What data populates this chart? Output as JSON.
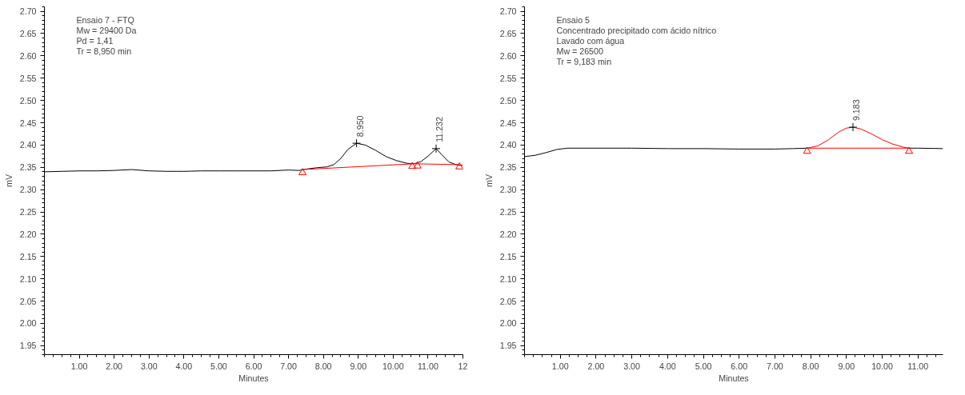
{
  "chart_data": [
    {
      "type": "line",
      "xlabel": "Minutes",
      "ylabel": "mV",
      "xlim": [
        0,
        12
      ],
      "ylim": [
        1.93,
        2.71
      ],
      "xticks": [
        {
          "value": 1,
          "label": "1.00"
        },
        {
          "value": 2,
          "label": "2.00"
        },
        {
          "value": 3,
          "label": "3.00"
        },
        {
          "value": 4,
          "label": "4.00"
        },
        {
          "value": 5,
          "label": "5.00"
        },
        {
          "value": 6,
          "label": "6.00"
        },
        {
          "value": 7,
          "label": "7.00"
        },
        {
          "value": 8,
          "label": "8.00"
        },
        {
          "value": 9,
          "label": "9.00"
        },
        {
          "value": 10,
          "label": "10.00"
        },
        {
          "value": 11,
          "label": "11.00"
        },
        {
          "value": 12,
          "label": "12"
        }
      ],
      "yticks": [
        {
          "value": 1.95,
          "label": "1.95"
        },
        {
          "value": 2.0,
          "label": "2.00"
        },
        {
          "value": 2.05,
          "label": "2.05"
        },
        {
          "value": 2.1,
          "label": "2.10"
        },
        {
          "value": 2.15,
          "label": "2.15"
        },
        {
          "value": 2.2,
          "label": "2.20"
        },
        {
          "value": 2.25,
          "label": "2.25"
        },
        {
          "value": 2.3,
          "label": "2.30"
        },
        {
          "value": 2.35,
          "label": "2.35"
        },
        {
          "value": 2.4,
          "label": "2.40"
        },
        {
          "value": 2.45,
          "label": "2.45"
        },
        {
          "value": 2.5,
          "label": "2.50"
        },
        {
          "value": 2.55,
          "label": "2.55"
        },
        {
          "value": 2.6,
          "label": "2.60"
        },
        {
          "value": 2.65,
          "label": "2.65"
        },
        {
          "value": 2.7,
          "label": "2.70"
        }
      ],
      "grid": false,
      "series": [
        {
          "color": "#000000",
          "x": [
            0.0,
            0.5,
            1.0,
            1.5,
            2.0,
            2.5,
            3.0,
            3.5,
            4.0,
            4.5,
            5.0,
            5.5,
            6.0,
            6.5,
            7.0,
            7.3,
            7.5,
            7.8,
            8.1,
            8.3,
            8.5,
            8.7,
            8.95,
            9.2,
            9.5,
            9.8,
            10.1,
            10.4,
            10.6,
            10.8,
            11.0,
            11.232,
            11.4,
            11.6,
            11.8,
            12.0
          ],
          "values": [
            2.34,
            2.341,
            2.342,
            2.342,
            2.343,
            2.345,
            2.342,
            2.341,
            2.341,
            2.342,
            2.342,
            2.342,
            2.342,
            2.342,
            2.344,
            2.343,
            2.346,
            2.349,
            2.351,
            2.356,
            2.37,
            2.39,
            2.404,
            2.4,
            2.388,
            2.374,
            2.365,
            2.359,
            2.358,
            2.363,
            2.375,
            2.392,
            2.378,
            2.362,
            2.356,
            2.354
          ]
        },
        {
          "color": "#ff0000",
          "x": [
            7.4,
            10.6,
            11.9
          ],
          "values": [
            2.345,
            2.358,
            2.356
          ]
        },
        {
          "type": "scatter",
          "color": "#ff0000",
          "marker": "triangle",
          "x": [
            7.4,
            10.55,
            10.7,
            11.9
          ],
          "values": [
            2.338,
            2.352,
            2.353,
            2.351
          ]
        }
      ],
      "annotations": [
        "Ensaio 7 - FTQ",
        "Mw = 29400 Da",
        "Pd = 1,41",
        "Tr = 8,950 min",
        {
          "text": "8.950",
          "x": 8.95,
          "y": 2.404
        },
        {
          "text": "11.232",
          "x": 11.232,
          "y": 2.392
        }
      ]
    },
    {
      "type": "line",
      "xlabel": "Minutes",
      "ylabel": "mV",
      "xlim": [
        0,
        11.7
      ],
      "ylim": [
        1.93,
        2.71
      ],
      "xticks": [
        {
          "value": 1,
          "label": "1.00"
        },
        {
          "value": 2,
          "label": "2.00"
        },
        {
          "value": 3,
          "label": "3.00"
        },
        {
          "value": 4,
          "label": "4.00"
        },
        {
          "value": 5,
          "label": "5.00"
        },
        {
          "value": 6,
          "label": "6.00"
        },
        {
          "value": 7,
          "label": "7.00"
        },
        {
          "value": 8,
          "label": "8.00"
        },
        {
          "value": 9,
          "label": "9.00"
        },
        {
          "value": 10,
          "label": "10.00"
        },
        {
          "value": 11,
          "label": "11.00"
        }
      ],
      "yticks": [
        {
          "value": 1.95,
          "label": "1.95"
        },
        {
          "value": 2.0,
          "label": "2.00"
        },
        {
          "value": 2.05,
          "label": "2.05"
        },
        {
          "value": 2.1,
          "label": "2.10"
        },
        {
          "value": 2.15,
          "label": "2.15"
        },
        {
          "value": 2.2,
          "label": "2.20"
        },
        {
          "value": 2.25,
          "label": "2.25"
        },
        {
          "value": 2.3,
          "label": "2.30"
        },
        {
          "value": 2.35,
          "label": "2.35"
        },
        {
          "value": 2.4,
          "label": "2.40"
        },
        {
          "value": 2.45,
          "label": "2.45"
        },
        {
          "value": 2.5,
          "label": "2.50"
        },
        {
          "value": 2.55,
          "label": "2.55"
        },
        {
          "value": 2.6,
          "label": "2.60"
        },
        {
          "value": 2.65,
          "label": "2.65"
        },
        {
          "value": 2.7,
          "label": "2.70"
        }
      ],
      "grid": false,
      "series": [
        {
          "color": "#000000",
          "x": [
            0.0,
            0.3,
            0.6,
            0.9,
            1.2,
            2.0,
            3.0,
            4.0,
            5.0,
            6.0,
            7.0,
            7.5,
            7.9,
            8.5,
            10.75,
            11.0,
            11.7
          ],
          "values": [
            2.374,
            2.377,
            2.383,
            2.39,
            2.393,
            2.393,
            2.393,
            2.392,
            2.392,
            2.391,
            2.391,
            2.392,
            2.393,
            null,
            2.393,
            2.393,
            2.392
          ]
        },
        {
          "color": "#ff0000",
          "x": [
            7.9,
            8.2,
            8.5,
            8.8,
            9.0,
            9.183,
            9.4,
            9.7,
            10.0,
            10.3,
            10.6,
            10.75
          ],
          "values": [
            2.393,
            2.398,
            2.412,
            2.43,
            2.438,
            2.44,
            2.436,
            2.425,
            2.412,
            2.402,
            2.395,
            2.393
          ]
        },
        {
          "color": "#ff0000",
          "x": [
            7.9,
            10.75
          ],
          "values": [
            2.393,
            2.393
          ]
        },
        {
          "type": "scatter",
          "color": "#ff0000",
          "marker": "triangle",
          "x": [
            7.9,
            10.75
          ],
          "values": [
            2.386,
            2.386
          ]
        }
      ],
      "annotations": [
        "Ensaio 5",
        "Concentrado precipitado com ácido nítrico",
        "Lavado com água",
        "Mw = 26500",
        "Tr = 9,183 min",
        {
          "text": "9.183",
          "x": 9.183,
          "y": 2.44
        }
      ]
    }
  ]
}
